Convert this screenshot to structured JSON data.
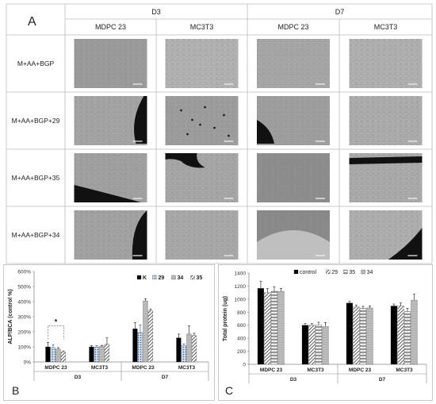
{
  "panel_a": {
    "letter": "A",
    "time_groups": [
      {
        "label": "D3",
        "cells": [
          "MDPC 23",
          "MC3T3"
        ]
      },
      {
        "label": "D7",
        "cells": [
          "MDPC 23",
          "MC3T3"
        ]
      }
    ],
    "row_labels": [
      "M+AA+BGP",
      "M+AA+BGP+29",
      "M+AA+BGP+35",
      "M+AA+BGP+34"
    ],
    "micrograph_tones": [
      [
        "#9c9c9c",
        "#b4b4b4",
        "#a8a8a8",
        "#b2b2b2"
      ],
      [
        "#a6a6a6",
        "#9e9e9e",
        "#a0a0a0",
        "#aeaeae"
      ],
      [
        "#a2a2a2",
        "#a8a8a8",
        "#8e8e8e",
        "#acacac"
      ],
      [
        "#a4a4a4",
        "#aaaaaa",
        "#8a8a8a",
        "#b0b0b0"
      ]
    ]
  },
  "panel_b_letter": "B",
  "panel_c_letter": "C",
  "chart_data": [
    {
      "type": "bar",
      "panel": "B",
      "ylabel": "ALP/BCA (control %)",
      "ylim": [
        0,
        600
      ],
      "yticks": [
        "0%",
        "100%",
        "200%",
        "300%",
        "400%",
        "500%",
        "600%"
      ],
      "categories": [
        "MDPC 23",
        "MC3T3",
        "MDPC 23",
        "MC3T3"
      ],
      "groups": [
        "D3",
        "D7"
      ],
      "legend_position": "top-right",
      "series": [
        {
          "name": "K",
          "values": [
            100,
            100,
            220,
            160
          ],
          "errors": [
            30,
            8,
            40,
            25
          ],
          "color": "#000000",
          "pattern": "solid"
        },
        {
          "name": "29",
          "values": [
            95,
            98,
            195,
            110
          ],
          "errors": [
            20,
            10,
            50,
            10
          ],
          "color": "#4b7bb7",
          "pattern": "dots"
        },
        {
          "name": "34",
          "values": [
            85,
            105,
            405,
            185
          ],
          "errors": [
            10,
            5,
            15,
            55
          ],
          "color": "#9a9a9a",
          "pattern": "light"
        },
        {
          "name": "35",
          "values": [
            65,
            120,
            340,
            175
          ],
          "errors": [
            8,
            40,
            10,
            15
          ],
          "color": "#555555",
          "pattern": "hatch"
        }
      ],
      "annotations": [
        {
          "text": "*",
          "between": [
            0,
            3
          ],
          "category": 0
        }
      ]
    },
    {
      "type": "bar",
      "panel": "C",
      "ylabel": "Total protein (ug)",
      "ylim": [
        0,
        1400
      ],
      "yticks": [
        "0",
        "200",
        "400",
        "600",
        "800",
        "1000",
        "1200",
        "1400"
      ],
      "categories": [
        "MDPC 23",
        "MC3T3",
        "MDPC 23",
        "MC3T3"
      ],
      "groups": [
        "D3",
        "D7"
      ],
      "legend_position": "top-right",
      "series": [
        {
          "name": "control",
          "values": [
            1165,
            600,
            940,
            895
          ],
          "errors": [
            110,
            25,
            25,
            30
          ],
          "color": "#000000",
          "pattern": "solid"
        },
        {
          "name": "29",
          "values": [
            1100,
            600,
            880,
            900
          ],
          "errors": [
            60,
            25,
            30,
            40
          ],
          "color": "#777777",
          "pattern": "hatch"
        },
        {
          "name": "35",
          "values": [
            1120,
            605,
            860,
            810
          ],
          "errors": [
            70,
            40,
            30,
            50
          ],
          "color": "#aaaaaa",
          "pattern": "zigzag"
        },
        {
          "name": "34",
          "values": [
            1120,
            580,
            865,
            985
          ],
          "errors": [
            45,
            60,
            30,
            90
          ],
          "color": "#c4c4c4",
          "pattern": "light"
        }
      ]
    }
  ]
}
